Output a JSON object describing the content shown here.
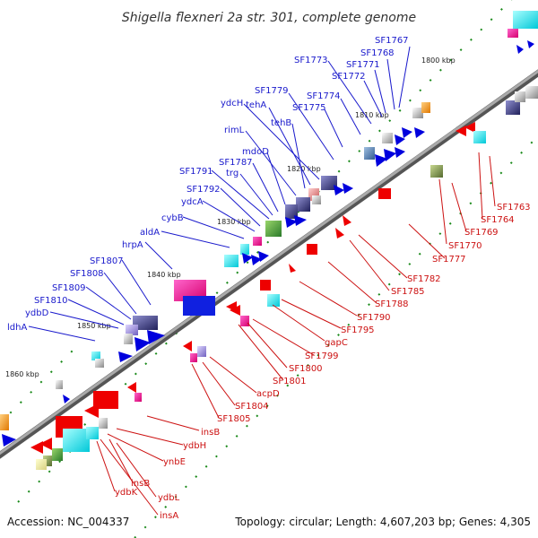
{
  "title": "Shigella flexneri 2a str. 301, complete genome",
  "footer": {
    "accession": "Accession: NC_004337",
    "summary": "Topology: circular; Length: 4,607,203 bp; Genes: 4,305"
  },
  "colors": {
    "forward_label": "#1a1acc",
    "reverse_label": "#cc1111",
    "forward_gene": "#0000dd",
    "reverse_gene": "#ee0000",
    "backbone": "#888888",
    "tick": "#1a8a1a"
  },
  "kbp_markers": [
    "1800 kbp",
    "1810 kbp",
    "1820 kbp",
    "1830 kbp",
    "1840 kbp",
    "1850 kbp",
    "1860 kbp"
  ],
  "forward_labels": [
    "SF1767",
    "SF1768",
    "SF1771",
    "SF1772",
    "SF1773",
    "SF1774",
    "SF1775",
    "SF1779",
    "ydcH",
    "tehA",
    "tehB",
    "rimL",
    "mdoD",
    "SF1787",
    "trg",
    "SF1791",
    "SF1792",
    "ydcA",
    "cybB",
    "aldA",
    "hrpA",
    "SF1807",
    "SF1808",
    "SF1809",
    "SF1810",
    "ydbD",
    "ldhA"
  ],
  "reverse_labels": [
    "SF1763",
    "SF1764",
    "SF1769",
    "SF1770",
    "SF1777",
    "SF1782",
    "SF1785",
    "SF1788",
    "SF1790",
    "SF1795",
    "gapC",
    "SF1799",
    "SF1800",
    "SF1801",
    "acpD",
    "SF1804",
    "SF1805",
    "insB",
    "ydbH",
    "ynbE",
    "insB",
    "ydbL",
    "ydbK",
    "insA"
  ]
}
